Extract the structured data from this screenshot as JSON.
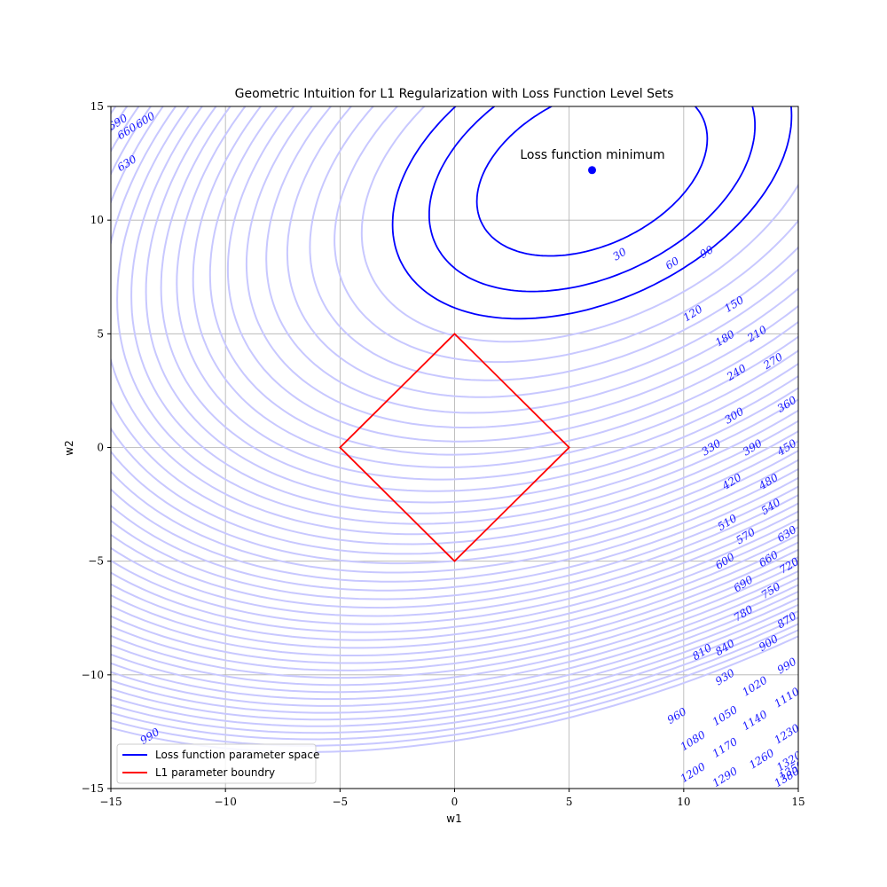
{
  "chart_data": {
    "type": "contour",
    "title": "Geometric Intuition for L1 Regularization with Loss Function Level Sets",
    "xlabel": "w1",
    "ylabel": "w2",
    "xlim": [
      -15,
      15
    ],
    "ylim": [
      -15,
      15
    ],
    "xticks": [
      -15,
      -10,
      -5,
      0,
      5,
      10,
      15
    ],
    "yticks": [
      -15,
      -10,
      -5,
      0,
      5,
      10,
      15
    ],
    "xtick_labels": [
      "−15",
      "−10",
      "−5",
      "0",
      "5",
      "10",
      "15"
    ],
    "ytick_labels": [
      "−15",
      "−10",
      "−5",
      "0",
      "5",
      "10",
      "15"
    ],
    "grid": true,
    "loss_minimum": {
      "w1": 6,
      "w2": 12.2
    },
    "annotation": "Loss function minimum",
    "highlighted_levels": [
      30,
      60,
      90
    ],
    "faint_levels_step": 30,
    "faint_levels_max": 1380,
    "contour_labels": [
      {
        "text": "30",
        "w1": 7.2,
        "w2": 8.5
      },
      {
        "text": "60",
        "w1": 9.5,
        "w2": 8.1
      },
      {
        "text": "90",
        "w1": 11.0,
        "w2": 8.6
      },
      {
        "text": "120",
        "w1": 10.4,
        "w2": 5.9
      },
      {
        "text": "150",
        "w1": 12.2,
        "w2": 6.3
      },
      {
        "text": "180",
        "w1": 11.8,
        "w2": 4.8
      },
      {
        "text": "210",
        "w1": 13.2,
        "w2": 5.0
      },
      {
        "text": "240",
        "w1": 12.3,
        "w2": 3.3
      },
      {
        "text": "270",
        "w1": 13.9,
        "w2": 3.8
      },
      {
        "text": "300",
        "w1": 12.2,
        "w2": 1.4
      },
      {
        "text": "330",
        "w1": 11.2,
        "w2": 0.0
      },
      {
        "text": "360",
        "w1": 14.5,
        "w2": 1.9
      },
      {
        "text": "390",
        "w1": 13.0,
        "w2": 0.0
      },
      {
        "text": "420",
        "w1": 12.1,
        "w2": -1.5
      },
      {
        "text": "450",
        "w1": 14.5,
        "w2": 0.0
      },
      {
        "text": "480",
        "w1": 13.7,
        "w2": -1.5
      },
      {
        "text": "510",
        "w1": 11.9,
        "w2": -3.3
      },
      {
        "text": "540",
        "w1": 13.8,
        "w2": -2.6
      },
      {
        "text": "570",
        "w1": 12.7,
        "w2": -3.9
      },
      {
        "text": "600",
        "w1": 11.8,
        "w2": -5.0
      },
      {
        "text": "630",
        "w1": 14.5,
        "w2": -3.8
      },
      {
        "text": "660",
        "w1": 13.7,
        "w2": -4.9
      },
      {
        "text": "690",
        "w1": 12.6,
        "w2": -6.0
      },
      {
        "text": "720",
        "w1": 14.6,
        "w2": -5.2
      },
      {
        "text": "750",
        "w1": 13.8,
        "w2": -6.3
      },
      {
        "text": "780",
        "w1": 12.6,
        "w2": -7.3
      },
      {
        "text": "810",
        "w1": 10.8,
        "w2": -9.0
      },
      {
        "text": "840",
        "w1": 11.8,
        "w2": -8.8
      },
      {
        "text": "870",
        "w1": 14.5,
        "w2": -7.6
      },
      {
        "text": "900",
        "w1": 13.7,
        "w2": -8.6
      },
      {
        "text": "930",
        "w1": 11.8,
        "w2": -10.1
      },
      {
        "text": "960",
        "w1": 9.7,
        "w2": -11.8
      },
      {
        "text": "990",
        "w1": 14.5,
        "w2": -9.6
      },
      {
        "text": "1020",
        "w1": 13.1,
        "w2": -10.5
      },
      {
        "text": "1050",
        "w1": 11.8,
        "w2": -11.8
      },
      {
        "text": "1080",
        "w1": 10.4,
        "w2": -12.9
      },
      {
        "text": "1110",
        "w1": 14.5,
        "w2": -11.0
      },
      {
        "text": "1140",
        "w1": 13.1,
        "w2": -12.0
      },
      {
        "text": "1170",
        "w1": 11.8,
        "w2": -13.2
      },
      {
        "text": "1200",
        "w1": 10.4,
        "w2": -14.3
      },
      {
        "text": "1230",
        "w1": 14.5,
        "w2": -12.6
      },
      {
        "text": "1260",
        "w1": 13.4,
        "w2": -13.7
      },
      {
        "text": "1290",
        "w1": 11.8,
        "w2": -14.5
      },
      {
        "text": "1320",
        "w1": 14.6,
        "w2": -13.8
      },
      {
        "text": "1350",
        "w1": 14.7,
        "w2": -14.2
      },
      {
        "text": "1380",
        "w1": 14.5,
        "w2": -14.5
      },
      {
        "text": "690",
        "w1": -14.7,
        "w2": 14.3
      },
      {
        "text": "660",
        "w1": -14.3,
        "w2": 13.9
      },
      {
        "text": "600",
        "w1": -13.5,
        "w2": 14.4
      },
      {
        "text": "630",
        "w1": -14.3,
        "w2": 12.5
      },
      {
        "text": "990",
        "w1": -13.3,
        "w2": -12.7
      }
    ],
    "l1_boundary": {
      "t": 5,
      "vertices": [
        [
          0,
          5
        ],
        [
          5,
          0
        ],
        [
          0,
          -5
        ],
        [
          -5,
          0
        ]
      ]
    },
    "legend": {
      "placement": "lower-left",
      "entries": [
        {
          "label": "Loss function parameter space",
          "color": "#0000ff"
        },
        {
          "label": "L1 parameter boundry",
          "color": "#ff0000"
        }
      ]
    },
    "colors": {
      "highlight_contour": "#0000ff",
      "faint_contour": "#c8c8ff",
      "l1_boundary": "#ff0000",
      "minimum_marker": "#0000ff",
      "grid": "#b0b0b0"
    }
  }
}
